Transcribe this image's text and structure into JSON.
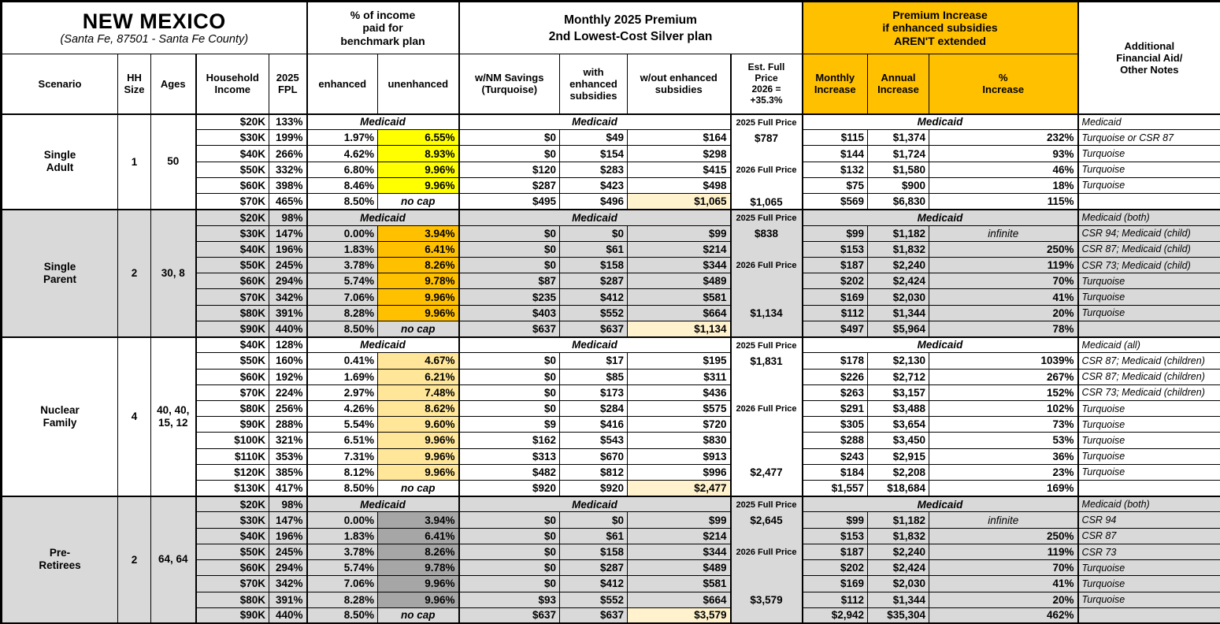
{
  "title": {
    "state": "NEW MEXICO",
    "subtitle": "(Santa Fe, 87501 - Santa Fe County)"
  },
  "headers": {
    "income_group": "% of income\npaid for\nbenchmark plan",
    "premium_group": "Monthly 2025 Premium\n2nd Lowest-Cost Silver plan",
    "increase_group": "Premium Increase\nif enhanced subsidies\nAREN'T extended",
    "notes": "Additional\nFinancial Aid/\nOther Notes",
    "scenario": "Scenario",
    "hh_size": "HH\nSize",
    "ages": "Ages",
    "income": "Household\nIncome",
    "fpl": "2025\nFPL",
    "enhanced": "enhanced",
    "unenhanced": "unenhanced",
    "nm_savings": "w/NM Savings\n(Turquoise)",
    "with_subsidies": "with\nenhanced\nsubsidies",
    "without_subsidies": "w/out enhanced\nsubsidies",
    "est_full_price": "Est. Full\nPrice\n2026 =\n+35.3%",
    "monthly_increase": "Monthly\nIncrease",
    "annual_increase": "Annual\nIncrease",
    "pct_increase": "%\nIncrease"
  },
  "colors": {
    "header_orange": "#FFC000",
    "yellow": "#FFFF00",
    "orange": "#FFC000",
    "tan": "#FFE699",
    "dark_gray": "#A6A6A6",
    "section_gray": "#D9D9D9",
    "white": "#FFFFFF",
    "highlight_cream": "#FFF2CC"
  },
  "sections": [
    {
      "scenario": "Single\nAdult",
      "hh_size": "1",
      "ages": "50",
      "row_bg": "#FFFFFF",
      "unenhanced_bg": "#FFFF00",
      "medicaid_label": "Medicaid",
      "est_items": [
        {
          "row": 0,
          "type": "label",
          "text": "2025 Full Price"
        },
        {
          "row": 1,
          "type": "price",
          "text": "$787"
        },
        {
          "row": 3,
          "type": "label",
          "text": "2026 Full Price"
        },
        {
          "row": 5,
          "type": "price",
          "text": "$1,065"
        }
      ],
      "rows": [
        {
          "income": "$20K",
          "fpl": "133%",
          "medicaid": true,
          "notes": "Medicaid"
        },
        {
          "income": "$30K",
          "fpl": "199%",
          "enhanced": "1.97%",
          "unenhanced": "6.55%",
          "nm": "$0",
          "with_sub": "$49",
          "wo_sub": "$164",
          "monthly": "$115",
          "annual": "$1,374",
          "pct": "232%",
          "notes": "Turquoise or CSR 87"
        },
        {
          "income": "$40K",
          "fpl": "266%",
          "enhanced": "4.62%",
          "unenhanced": "8.93%",
          "nm": "$0",
          "with_sub": "$154",
          "wo_sub": "$298",
          "monthly": "$144",
          "annual": "$1,724",
          "pct": "93%",
          "notes": "Turquoise"
        },
        {
          "income": "$50K",
          "fpl": "332%",
          "enhanced": "6.80%",
          "unenhanced": "9.96%",
          "nm": "$120",
          "with_sub": "$283",
          "wo_sub": "$415",
          "monthly": "$132",
          "annual": "$1,580",
          "pct": "46%",
          "notes": "Turquoise"
        },
        {
          "income": "$60K",
          "fpl": "398%",
          "enhanced": "8.46%",
          "unenhanced": "9.96%",
          "nm": "$287",
          "with_sub": "$423",
          "wo_sub": "$498",
          "monthly": "$75",
          "annual": "$900",
          "pct": "18%",
          "notes": "Turquoise"
        },
        {
          "income": "$70K",
          "fpl": "465%",
          "enhanced": "8.50%",
          "unenhanced": "no cap",
          "no_cap": true,
          "nm": "$495",
          "with_sub": "$496",
          "wo_sub": "$1,065",
          "wo_highlight": true,
          "monthly": "$569",
          "annual": "$6,830",
          "pct": "115%",
          "notes": ""
        }
      ]
    },
    {
      "scenario": "Single\nParent",
      "hh_size": "2",
      "ages": "30, 8",
      "row_bg": "#D9D9D9",
      "unenhanced_bg": "#FFC000",
      "medicaid_label": "Medicaid",
      "est_items": [
        {
          "row": 0,
          "type": "label",
          "text": "2025 Full Price"
        },
        {
          "row": 1,
          "type": "price",
          "text": "$838"
        },
        {
          "row": 3,
          "type": "label",
          "text": "2026 Full Price"
        },
        {
          "row": 6,
          "type": "price",
          "text": "$1,134"
        }
      ],
      "rows": [
        {
          "income": "$20K",
          "fpl": "98%",
          "medicaid": true,
          "notes": "Medicaid (both)"
        },
        {
          "income": "$30K",
          "fpl": "147%",
          "enhanced": "0.00%",
          "unenhanced": "3.94%",
          "nm": "$0",
          "with_sub": "$0",
          "wo_sub": "$99",
          "monthly": "$99",
          "annual": "$1,182",
          "pct": "infinite",
          "notes": "CSR 94; Medicaid (child)"
        },
        {
          "income": "$40K",
          "fpl": "196%",
          "enhanced": "1.83%",
          "unenhanced": "6.41%",
          "nm": "$0",
          "with_sub": "$61",
          "wo_sub": "$214",
          "monthly": "$153",
          "annual": "$1,832",
          "pct": "250%",
          "notes": "CSR 87; Medicaid (child)"
        },
        {
          "income": "$50K",
          "fpl": "245%",
          "enhanced": "3.78%",
          "unenhanced": "8.26%",
          "nm": "$0",
          "with_sub": "$158",
          "wo_sub": "$344",
          "monthly": "$187",
          "annual": "$2,240",
          "pct": "119%",
          "notes": "CSR 73; Medicaid (child)"
        },
        {
          "income": "$60K",
          "fpl": "294%",
          "enhanced": "5.74%",
          "unenhanced": "9.78%",
          "nm": "$87",
          "with_sub": "$287",
          "wo_sub": "$489",
          "monthly": "$202",
          "annual": "$2,424",
          "pct": "70%",
          "notes": "Turquoise"
        },
        {
          "income": "$70K",
          "fpl": "342%",
          "enhanced": "7.06%",
          "unenhanced": "9.96%",
          "nm": "$235",
          "with_sub": "$412",
          "wo_sub": "$581",
          "monthly": "$169",
          "annual": "$2,030",
          "pct": "41%",
          "notes": "Turquoise"
        },
        {
          "income": "$80K",
          "fpl": "391%",
          "enhanced": "8.28%",
          "unenhanced": "9.96%",
          "nm": "$403",
          "with_sub": "$552",
          "wo_sub": "$664",
          "monthly": "$112",
          "annual": "$1,344",
          "pct": "20%",
          "notes": "Turquoise"
        },
        {
          "income": "$90K",
          "fpl": "440%",
          "enhanced": "8.50%",
          "unenhanced": "no cap",
          "no_cap": true,
          "nm": "$637",
          "with_sub": "$637",
          "wo_sub": "$1,134",
          "wo_highlight": true,
          "monthly": "$497",
          "annual": "$5,964",
          "pct": "78%",
          "notes": ""
        }
      ]
    },
    {
      "scenario": "Nuclear\nFamily",
      "hh_size": "4",
      "ages": "40, 40,\n15, 12",
      "row_bg": "#FFFFFF",
      "unenhanced_bg": "#FFE699",
      "medicaid_label": "Medicaid",
      "est_items": [
        {
          "row": 0,
          "type": "label",
          "text": "2025 Full Price"
        },
        {
          "row": 1,
          "type": "price",
          "text": "$1,831"
        },
        {
          "row": 4,
          "type": "label",
          "text": "2026 Full Price"
        },
        {
          "row": 8,
          "type": "price",
          "text": "$2,477"
        }
      ],
      "rows": [
        {
          "income": "$40K",
          "fpl": "128%",
          "medicaid": true,
          "notes": "Medicaid (all)"
        },
        {
          "income": "$50K",
          "fpl": "160%",
          "enhanced": "0.41%",
          "unenhanced": "4.67%",
          "nm": "$0",
          "with_sub": "$17",
          "wo_sub": "$195",
          "monthly": "$178",
          "annual": "$2,130",
          "pct": "1039%",
          "notes": "CSR 87; Medicaid (children)"
        },
        {
          "income": "$60K",
          "fpl": "192%",
          "enhanced": "1.69%",
          "unenhanced": "6.21%",
          "nm": "$0",
          "with_sub": "$85",
          "wo_sub": "$311",
          "monthly": "$226",
          "annual": "$2,712",
          "pct": "267%",
          "notes": "CSR 87; Medicaid (children)"
        },
        {
          "income": "$70K",
          "fpl": "224%",
          "enhanced": "2.97%",
          "unenhanced": "7.48%",
          "nm": "$0",
          "with_sub": "$173",
          "wo_sub": "$436",
          "monthly": "$263",
          "annual": "$3,157",
          "pct": "152%",
          "notes": "CSR 73; Medicaid (children)"
        },
        {
          "income": "$80K",
          "fpl": "256%",
          "enhanced": "4.26%",
          "unenhanced": "8.62%",
          "nm": "$0",
          "with_sub": "$284",
          "wo_sub": "$575",
          "monthly": "$291",
          "annual": "$3,488",
          "pct": "102%",
          "notes": "Turquoise"
        },
        {
          "income": "$90K",
          "fpl": "288%",
          "enhanced": "5.54%",
          "unenhanced": "9.60%",
          "nm": "$9",
          "with_sub": "$416",
          "wo_sub": "$720",
          "monthly": "$305",
          "annual": "$3,654",
          "pct": "73%",
          "notes": "Turquoise"
        },
        {
          "income": "$100K",
          "fpl": "321%",
          "enhanced": "6.51%",
          "unenhanced": "9.96%",
          "nm": "$162",
          "with_sub": "$543",
          "wo_sub": "$830",
          "monthly": "$288",
          "annual": "$3,450",
          "pct": "53%",
          "notes": "Turquoise"
        },
        {
          "income": "$110K",
          "fpl": "353%",
          "enhanced": "7.31%",
          "unenhanced": "9.96%",
          "nm": "$313",
          "with_sub": "$670",
          "wo_sub": "$913",
          "monthly": "$243",
          "annual": "$2,915",
          "pct": "36%",
          "notes": "Turquoise"
        },
        {
          "income": "$120K",
          "fpl": "385%",
          "enhanced": "8.12%",
          "unenhanced": "9.96%",
          "nm": "$482",
          "with_sub": "$812",
          "wo_sub": "$996",
          "monthly": "$184",
          "annual": "$2,208",
          "pct": "23%",
          "notes": "Turquoise"
        },
        {
          "income": "$130K",
          "fpl": "417%",
          "enhanced": "8.50%",
          "unenhanced": "no cap",
          "no_cap": true,
          "nm": "$920",
          "with_sub": "$920",
          "wo_sub": "$2,477",
          "wo_highlight": true,
          "monthly": "$1,557",
          "annual": "$18,684",
          "pct": "169%",
          "notes": ""
        }
      ]
    },
    {
      "scenario": "Pre-\nRetirees",
      "hh_size": "2",
      "ages": "64, 64",
      "row_bg": "#D9D9D9",
      "unenhanced_bg": "#A6A6A6",
      "medicaid_label": "Medicaid",
      "est_items": [
        {
          "row": 0,
          "type": "label",
          "text": "2025 Full Price"
        },
        {
          "row": 1,
          "type": "price",
          "text": "$2,645"
        },
        {
          "row": 3,
          "type": "label",
          "text": "2026 Full Price"
        },
        {
          "row": 6,
          "type": "price",
          "text": "$3,579"
        }
      ],
      "rows": [
        {
          "income": "$20K",
          "fpl": "98%",
          "medicaid": true,
          "notes": "Medicaid (both)"
        },
        {
          "income": "$30K",
          "fpl": "147%",
          "enhanced": "0.00%",
          "unenhanced": "3.94%",
          "nm": "$0",
          "with_sub": "$0",
          "wo_sub": "$99",
          "monthly": "$99",
          "annual": "$1,182",
          "pct": "infinite",
          "notes": "CSR 94"
        },
        {
          "income": "$40K",
          "fpl": "196%",
          "enhanced": "1.83%",
          "unenhanced": "6.41%",
          "nm": "$0",
          "with_sub": "$61",
          "wo_sub": "$214",
          "monthly": "$153",
          "annual": "$1,832",
          "pct": "250%",
          "notes": "CSR 87"
        },
        {
          "income": "$50K",
          "fpl": "245%",
          "enhanced": "3.78%",
          "unenhanced": "8.26%",
          "nm": "$0",
          "with_sub": "$158",
          "wo_sub": "$344",
          "monthly": "$187",
          "annual": "$2,240",
          "pct": "119%",
          "notes": "CSR 73"
        },
        {
          "income": "$60K",
          "fpl": "294%",
          "enhanced": "5.74%",
          "unenhanced": "9.78%",
          "nm": "$0",
          "with_sub": "$287",
          "wo_sub": "$489",
          "monthly": "$202",
          "annual": "$2,424",
          "pct": "70%",
          "notes": "Turquoise"
        },
        {
          "income": "$70K",
          "fpl": "342%",
          "enhanced": "7.06%",
          "unenhanced": "9.96%",
          "nm": "$0",
          "with_sub": "$412",
          "wo_sub": "$581",
          "monthly": "$169",
          "annual": "$2,030",
          "pct": "41%",
          "notes": "Turquoise"
        },
        {
          "income": "$80K",
          "fpl": "391%",
          "enhanced": "8.28%",
          "unenhanced": "9.96%",
          "nm": "$93",
          "with_sub": "$552",
          "wo_sub": "$664",
          "monthly": "$112",
          "annual": "$1,344",
          "pct": "20%",
          "notes": "Turquoise"
        },
        {
          "income": "$90K",
          "fpl": "440%",
          "enhanced": "8.50%",
          "unenhanced": "no cap",
          "no_cap": true,
          "nm": "$637",
          "with_sub": "$637",
          "wo_sub": "$3,579",
          "wo_highlight": true,
          "monthly": "$2,942",
          "annual": "$35,304",
          "pct": "462%",
          "notes": ""
        }
      ]
    }
  ]
}
